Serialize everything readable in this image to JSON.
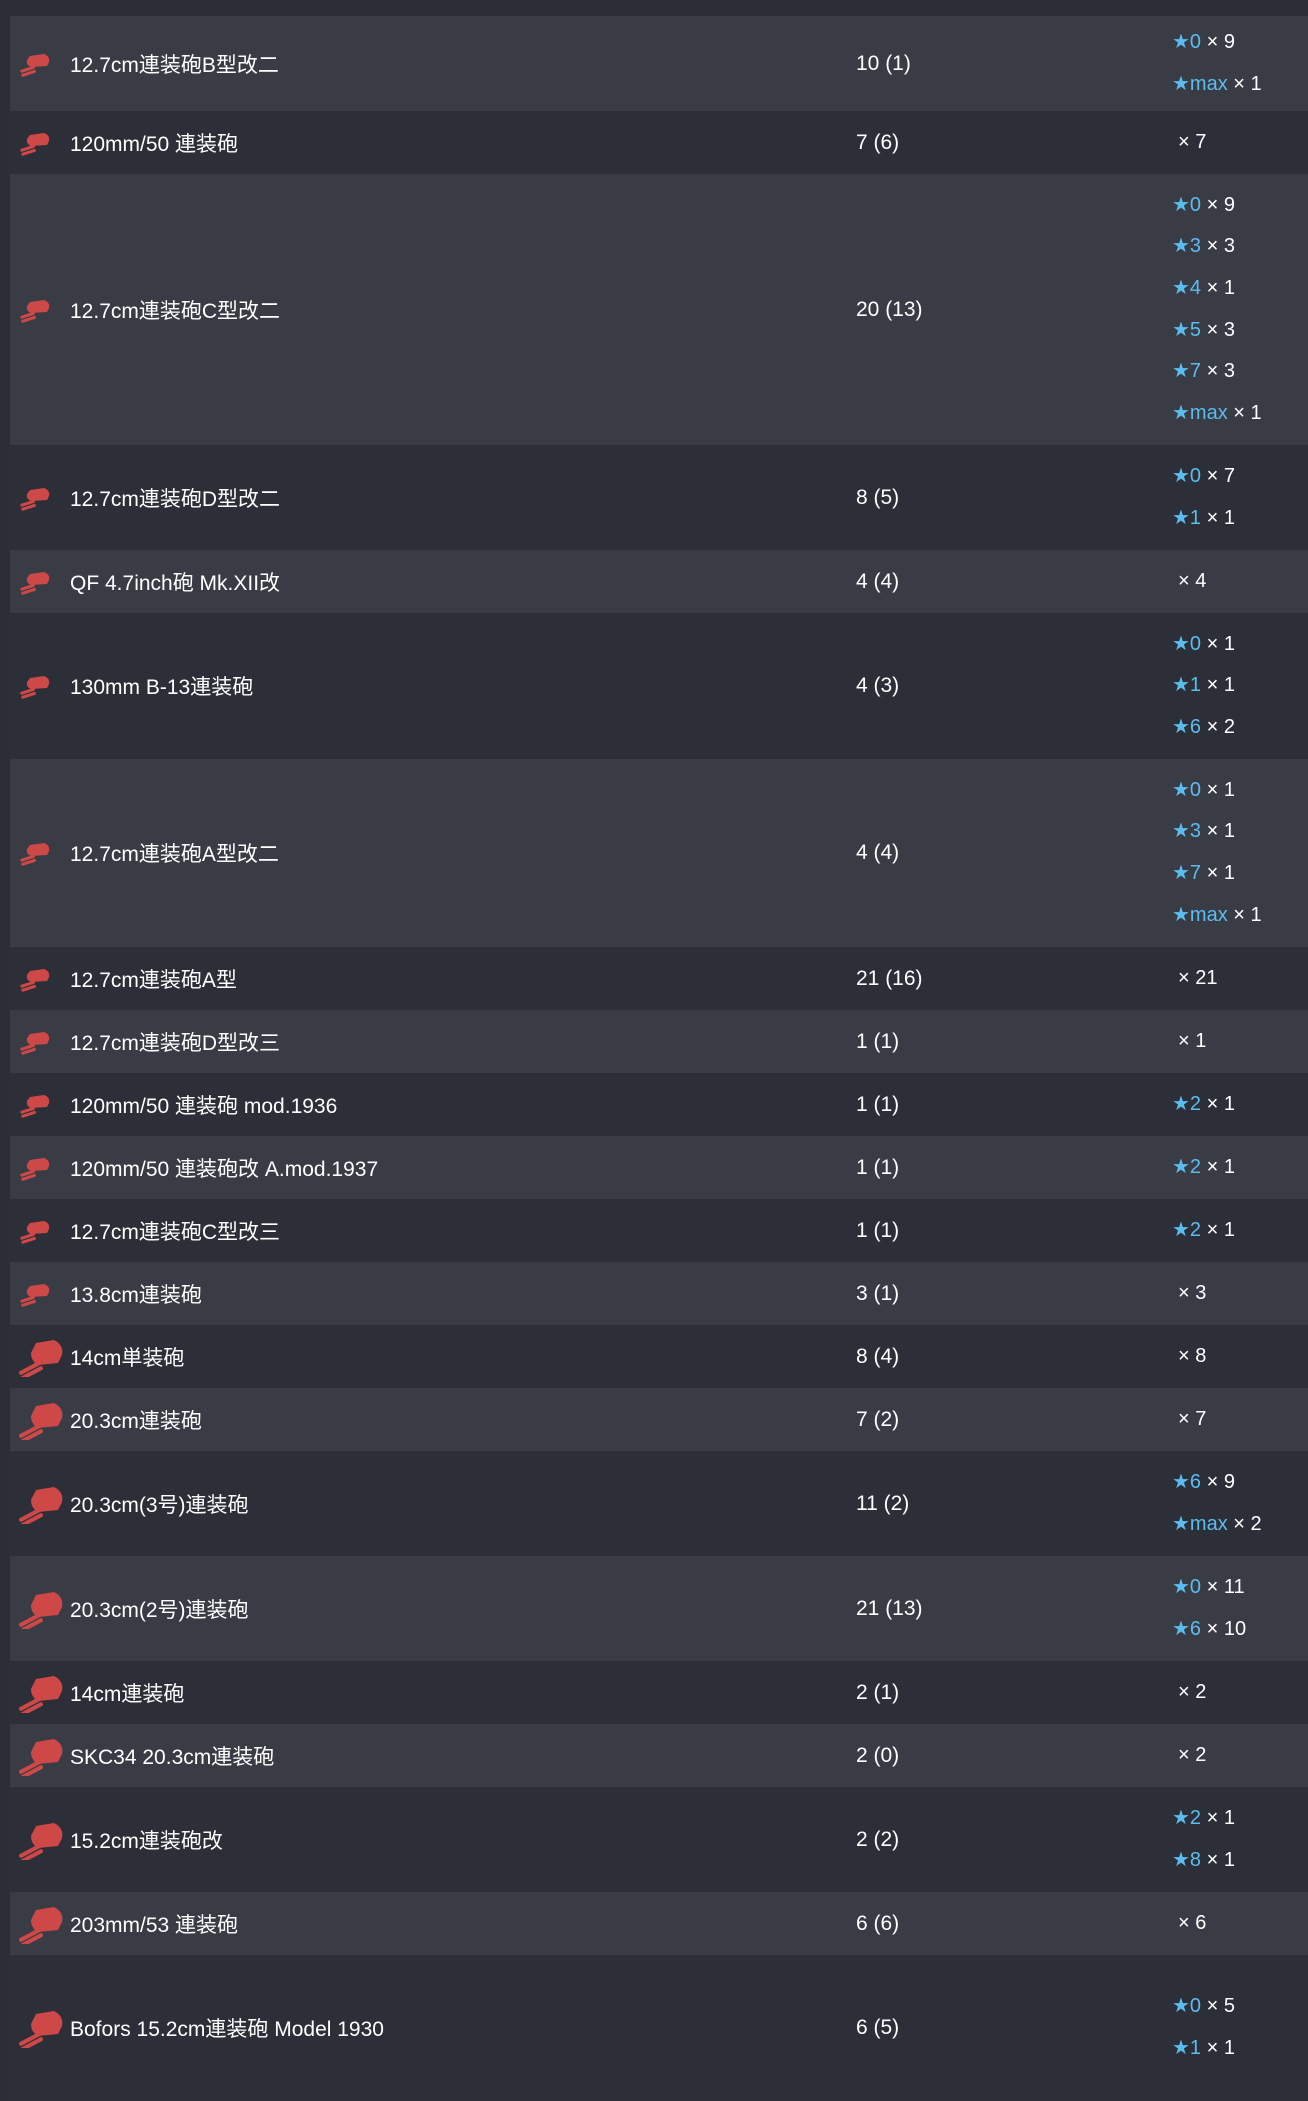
{
  "colors": {
    "background": "#2b2e36",
    "row_even": "#393c45",
    "row_odd": "#2c2f37",
    "star": "#5bbcf0",
    "icon": "#cf4848"
  },
  "rows": [
    {
      "name": "12.7cm連装砲B型改二",
      "count": "10 (1)",
      "icon": "small-gun-icon",
      "improvements": [
        {
          "star": "★0",
          "times": "× 9"
        },
        {
          "star": "★max",
          "times": "× 1"
        }
      ]
    },
    {
      "name": "120mm/50 連装砲",
      "count": "7 (6)",
      "icon": "small-gun-icon",
      "improvements": [
        {
          "star": "",
          "times": "× 7"
        }
      ]
    },
    {
      "name": "12.7cm連装砲C型改二",
      "count": "20 (13)",
      "icon": "small-gun-icon",
      "improvements": [
        {
          "star": "★0",
          "times": "× 9"
        },
        {
          "star": "★3",
          "times": "× 3"
        },
        {
          "star": "★4",
          "times": "× 1"
        },
        {
          "star": "★5",
          "times": "× 3"
        },
        {
          "star": "★7",
          "times": "× 3"
        },
        {
          "star": "★max",
          "times": "× 1"
        }
      ]
    },
    {
      "name": "12.7cm連装砲D型改二",
      "count": "8 (5)",
      "icon": "small-gun-icon",
      "improvements": [
        {
          "star": "★0",
          "times": "× 7"
        },
        {
          "star": "★1",
          "times": "× 1"
        }
      ]
    },
    {
      "name": "QF 4.7inch砲 Mk.XII改",
      "count": "4 (4)",
      "icon": "small-gun-icon",
      "improvements": [
        {
          "star": "",
          "times": "× 4"
        }
      ]
    },
    {
      "name": "130mm B-13連装砲",
      "count": "4 (3)",
      "icon": "small-gun-icon",
      "improvements": [
        {
          "star": "★0",
          "times": "× 1"
        },
        {
          "star": "★1",
          "times": "× 1"
        },
        {
          "star": "★6",
          "times": "× 2"
        }
      ]
    },
    {
      "name": "12.7cm連装砲A型改二",
      "count": "4 (4)",
      "icon": "small-gun-icon",
      "improvements": [
        {
          "star": "★0",
          "times": "× 1"
        },
        {
          "star": "★3",
          "times": "× 1"
        },
        {
          "star": "★7",
          "times": "× 1"
        },
        {
          "star": "★max",
          "times": "× 1"
        }
      ]
    },
    {
      "name": "12.7cm連装砲A型",
      "count": "21 (16)",
      "icon": "small-gun-icon",
      "improvements": [
        {
          "star": "",
          "times": "× 21"
        }
      ]
    },
    {
      "name": "12.7cm連装砲D型改三",
      "count": "1 (1)",
      "icon": "small-gun-icon",
      "improvements": [
        {
          "star": "",
          "times": "× 1"
        }
      ]
    },
    {
      "name": "120mm/50 連装砲 mod.1936",
      "count": "1 (1)",
      "icon": "small-gun-icon",
      "improvements": [
        {
          "star": "★2",
          "times": "× 1"
        }
      ]
    },
    {
      "name": "120mm/50 連装砲改 A.mod.1937",
      "count": "1 (1)",
      "icon": "small-gun-icon",
      "improvements": [
        {
          "star": "★2",
          "times": "× 1"
        }
      ]
    },
    {
      "name": "12.7cm連装砲C型改三",
      "count": "1 (1)",
      "icon": "small-gun-icon",
      "improvements": [
        {
          "star": "★2",
          "times": "× 1"
        }
      ]
    },
    {
      "name": "13.8cm連装砲",
      "count": "3 (1)",
      "icon": "small-gun-icon",
      "improvements": [
        {
          "star": "",
          "times": "× 3"
        }
      ]
    },
    {
      "name": "14cm単装砲",
      "count": "8 (4)",
      "icon": "medium-gun-icon",
      "improvements": [
        {
          "star": "",
          "times": "× 8"
        }
      ]
    },
    {
      "name": "20.3cm連装砲",
      "count": "7 (2)",
      "icon": "medium-gun-icon",
      "improvements": [
        {
          "star": "",
          "times": "× 7"
        }
      ]
    },
    {
      "name": "20.3cm(3号)連装砲",
      "count": "11 (2)",
      "icon": "medium-gun-icon",
      "improvements": [
        {
          "star": "★6",
          "times": "× 9"
        },
        {
          "star": "★max",
          "times": "× 2"
        }
      ]
    },
    {
      "name": "20.3cm(2号)連装砲",
      "count": "21 (13)",
      "icon": "medium-gun-icon",
      "improvements": [
        {
          "star": "★0",
          "times": "× 11"
        },
        {
          "star": "★6",
          "times": "× 10"
        }
      ]
    },
    {
      "name": "14cm連装砲",
      "count": "2 (1)",
      "icon": "medium-gun-icon",
      "improvements": [
        {
          "star": "",
          "times": "× 2"
        }
      ]
    },
    {
      "name": "SKC34 20.3cm連装砲",
      "count": "2 (0)",
      "icon": "medium-gun-icon",
      "improvements": [
        {
          "star": "",
          "times": "× 2"
        }
      ]
    },
    {
      "name": "15.2cm連装砲改",
      "count": "2 (2)",
      "icon": "medium-gun-icon",
      "improvements": [
        {
          "star": "★2",
          "times": "× 1"
        },
        {
          "star": "★8",
          "times": "× 1"
        }
      ]
    },
    {
      "name": "203mm/53 連装砲",
      "count": "6 (6)",
      "icon": "medium-gun-icon",
      "improvements": [
        {
          "star": "",
          "times": "× 6"
        }
      ]
    },
    {
      "name": "Bofors 15.2cm連装砲 Model 1930",
      "count": "6 (5)",
      "icon": "medium-gun-icon",
      "improvements": [
        {
          "star": "★0",
          "times": "× 5"
        },
        {
          "star": "★1",
          "times": "× 1"
        }
      ]
    }
  ]
}
